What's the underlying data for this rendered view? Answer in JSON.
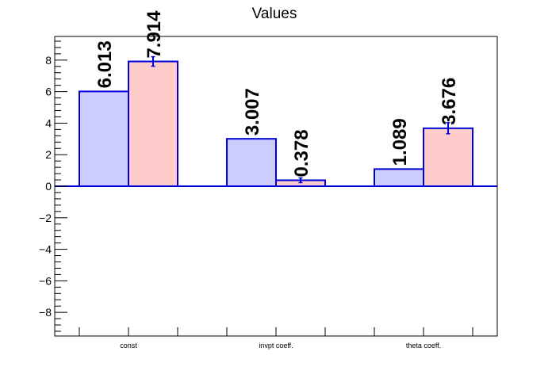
{
  "chart_data": {
    "type": "bar",
    "title": "Values",
    "xlabel": "",
    "ylabel": "",
    "categories": [
      "const",
      "invpt coeff.",
      "theta coeff."
    ],
    "series": [
      {
        "values": [
          6.013,
          3.007,
          1.089
        ],
        "errors": [
          0,
          0,
          0
        ],
        "labels": [
          "6.013",
          "3.007",
          "1.089"
        ],
        "fill": "#ccccff",
        "stroke": "#0000dd"
      },
      {
        "values": [
          7.914,
          0.378,
          3.676
        ],
        "errors": [
          0.3,
          0.15,
          0.35
        ],
        "labels": [
          "7.914",
          "0.378",
          "3.676"
        ],
        "fill": "#ffcccc",
        "stroke": "#0000dd"
      }
    ],
    "ylim": [
      -9.5,
      9.5
    ],
    "yticks": [
      -8,
      -6,
      -4,
      -2,
      0,
      2,
      4,
      6,
      8
    ],
    "ytick_labels": [
      "−8",
      "−6",
      "−4",
      "−2",
      "0",
      "2",
      "4",
      "6",
      "8"
    ],
    "grid": false,
    "legend": "none",
    "zero_line_color": "#0000dd",
    "error_bar_color": "#0000dd"
  }
}
